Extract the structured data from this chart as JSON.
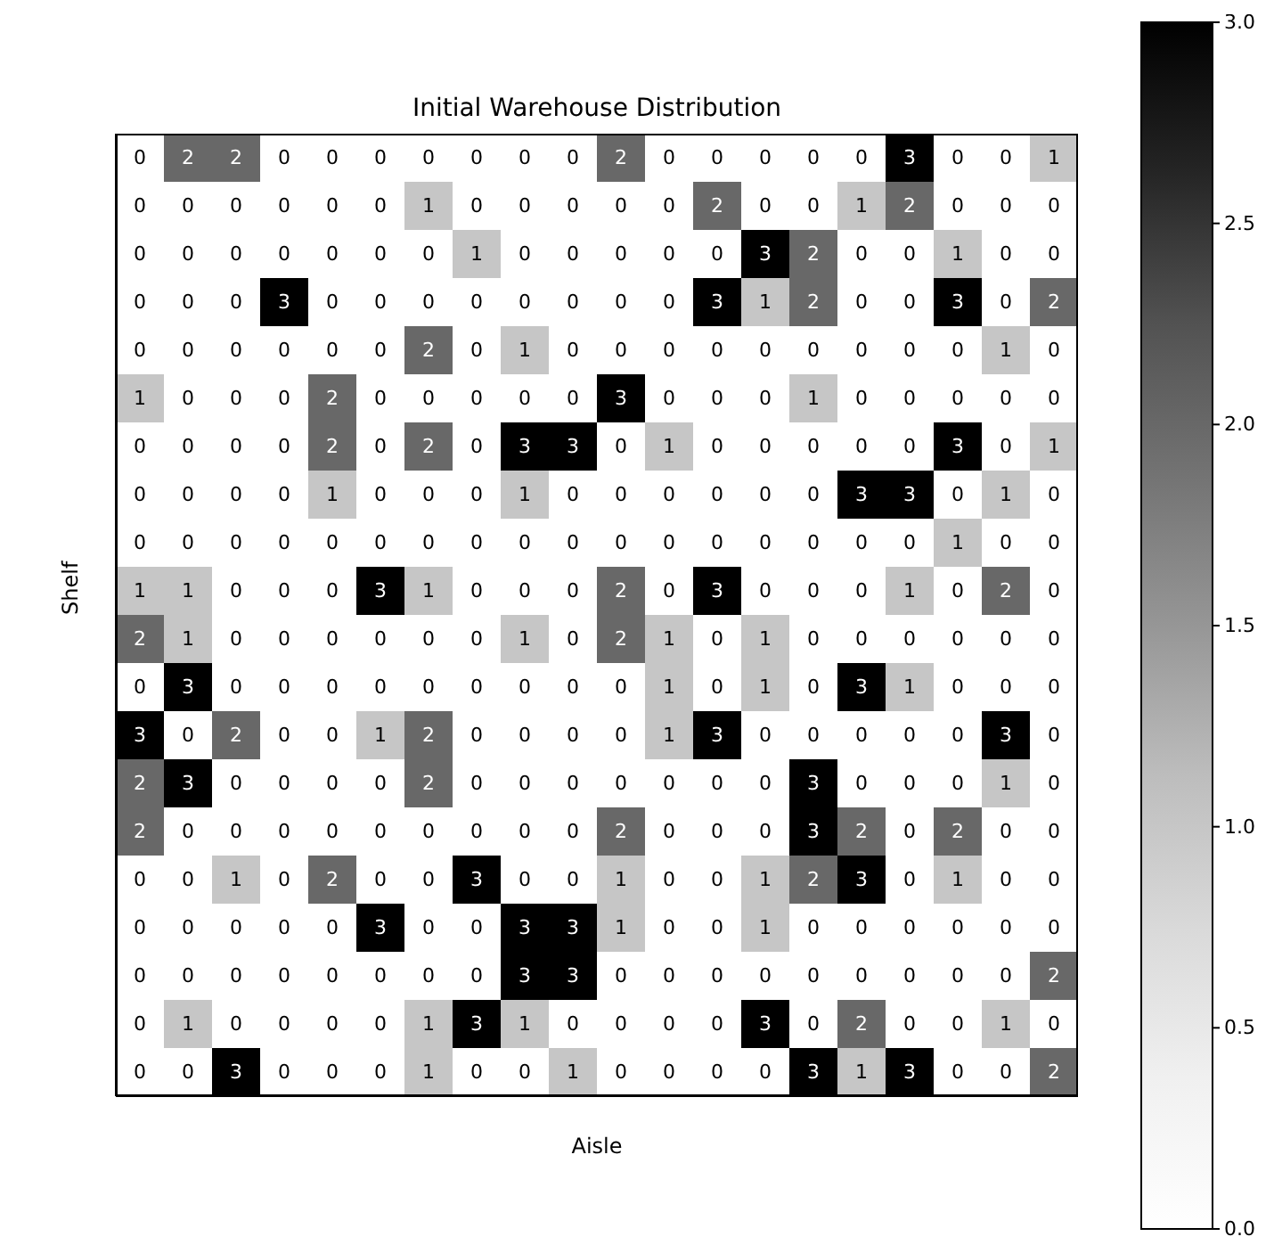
{
  "chart_data": {
    "type": "heatmap",
    "title": "Initial Warehouse Distribution",
    "xlabel": "Aisle",
    "ylabel": "Shelf",
    "categories": [
      null,
      null,
      null,
      null,
      null,
      null,
      null,
      null,
      null,
      null,
      null,
      null,
      null,
      null,
      null,
      null,
      null,
      null,
      null,
      null
    ],
    "y_categories": [
      null,
      null,
      null,
      null,
      null,
      null,
      null,
      null,
      null,
      null,
      null,
      null,
      null,
      null,
      null,
      null,
      null,
      null,
      null,
      null
    ],
    "cells": [
      [
        0,
        2,
        2,
        0,
        0,
        0,
        0,
        0,
        0,
        0,
        2,
        0,
        0,
        0,
        0,
        0,
        3,
        0,
        0,
        1
      ],
      [
        0,
        0,
        0,
        0,
        0,
        0,
        1,
        0,
        0,
        0,
        0,
        0,
        2,
        0,
        0,
        1,
        2,
        0,
        0,
        0
      ],
      [
        0,
        0,
        0,
        0,
        0,
        0,
        0,
        1,
        0,
        0,
        0,
        0,
        0,
        3,
        2,
        0,
        0,
        1,
        0,
        0
      ],
      [
        0,
        0,
        0,
        3,
        0,
        0,
        0,
        0,
        0,
        0,
        0,
        0,
        3,
        1,
        2,
        0,
        0,
        3,
        0,
        2
      ],
      [
        0,
        0,
        0,
        0,
        0,
        0,
        2,
        0,
        1,
        0,
        0,
        0,
        0,
        0,
        0,
        0,
        0,
        0,
        1,
        0
      ],
      [
        1,
        0,
        0,
        0,
        2,
        0,
        0,
        0,
        0,
        0,
        3,
        0,
        0,
        0,
        1,
        0,
        0,
        0,
        0,
        0
      ],
      [
        0,
        0,
        0,
        0,
        2,
        0,
        2,
        0,
        3,
        3,
        0,
        1,
        0,
        0,
        0,
        0,
        0,
        3,
        0,
        1
      ],
      [
        0,
        0,
        0,
        0,
        1,
        0,
        0,
        0,
        1,
        0,
        0,
        0,
        0,
        0,
        0,
        3,
        3,
        0,
        1,
        0
      ],
      [
        0,
        0,
        0,
        0,
        0,
        0,
        0,
        0,
        0,
        0,
        0,
        0,
        0,
        0,
        0,
        0,
        0,
        1,
        0,
        0
      ],
      [
        1,
        1,
        0,
        0,
        0,
        3,
        1,
        0,
        0,
        0,
        2,
        0,
        3,
        0,
        0,
        0,
        1,
        0,
        2,
        0
      ],
      [
        2,
        1,
        0,
        0,
        0,
        0,
        0,
        0,
        1,
        0,
        2,
        1,
        0,
        1,
        0,
        0,
        0,
        0,
        0,
        0
      ],
      [
        0,
        3,
        0,
        0,
        0,
        0,
        0,
        0,
        0,
        0,
        0,
        1,
        0,
        1,
        0,
        3,
        1,
        0,
        0,
        0
      ],
      [
        3,
        0,
        2,
        0,
        0,
        1,
        2,
        0,
        0,
        0,
        0,
        1,
        3,
        0,
        0,
        0,
        0,
        0,
        3,
        0
      ],
      [
        2,
        3,
        0,
        0,
        0,
        0,
        2,
        0,
        0,
        0,
        0,
        0,
        0,
        0,
        3,
        0,
        0,
        0,
        1,
        0
      ],
      [
        2,
        0,
        0,
        0,
        0,
        0,
        0,
        0,
        0,
        0,
        2,
        0,
        0,
        0,
        3,
        2,
        0,
        2,
        0,
        0
      ],
      [
        0,
        0,
        1,
        0,
        2,
        0,
        0,
        3,
        0,
        0,
        1,
        0,
        0,
        1,
        2,
        3,
        0,
        1,
        0,
        0
      ],
      [
        0,
        0,
        0,
        0,
        0,
        3,
        0,
        0,
        3,
        3,
        1,
        0,
        0,
        1,
        0,
        0,
        0,
        0,
        0,
        0
      ],
      [
        0,
        0,
        0,
        0,
        0,
        0,
        0,
        0,
        3,
        3,
        0,
        0,
        0,
        0,
        0,
        0,
        0,
        0,
        0,
        2
      ],
      [
        0,
        1,
        0,
        0,
        0,
        0,
        1,
        3,
        1,
        0,
        0,
        0,
        0,
        3,
        0,
        2,
        0,
        0,
        1,
        0
      ],
      [
        0,
        0,
        3,
        0,
        0,
        0,
        1,
        0,
        0,
        1,
        0,
        0,
        0,
        0,
        3,
        1,
        3,
        0,
        0,
        2
      ]
    ],
    "data_labels": true,
    "tick_labels": false,
    "clim": [
      0,
      3
    ],
    "cticks": [
      {
        "value": 0,
        "label": "0.0"
      },
      {
        "value": 0.5,
        "label": "0.5"
      },
      {
        "value": 1,
        "label": "1.0"
      },
      {
        "value": 1.5,
        "label": "1.5"
      },
      {
        "value": 2,
        "label": "2.0"
      },
      {
        "value": 2.5,
        "label": "2.5"
      },
      {
        "value": 3,
        "label": "3.0"
      }
    ]
  }
}
